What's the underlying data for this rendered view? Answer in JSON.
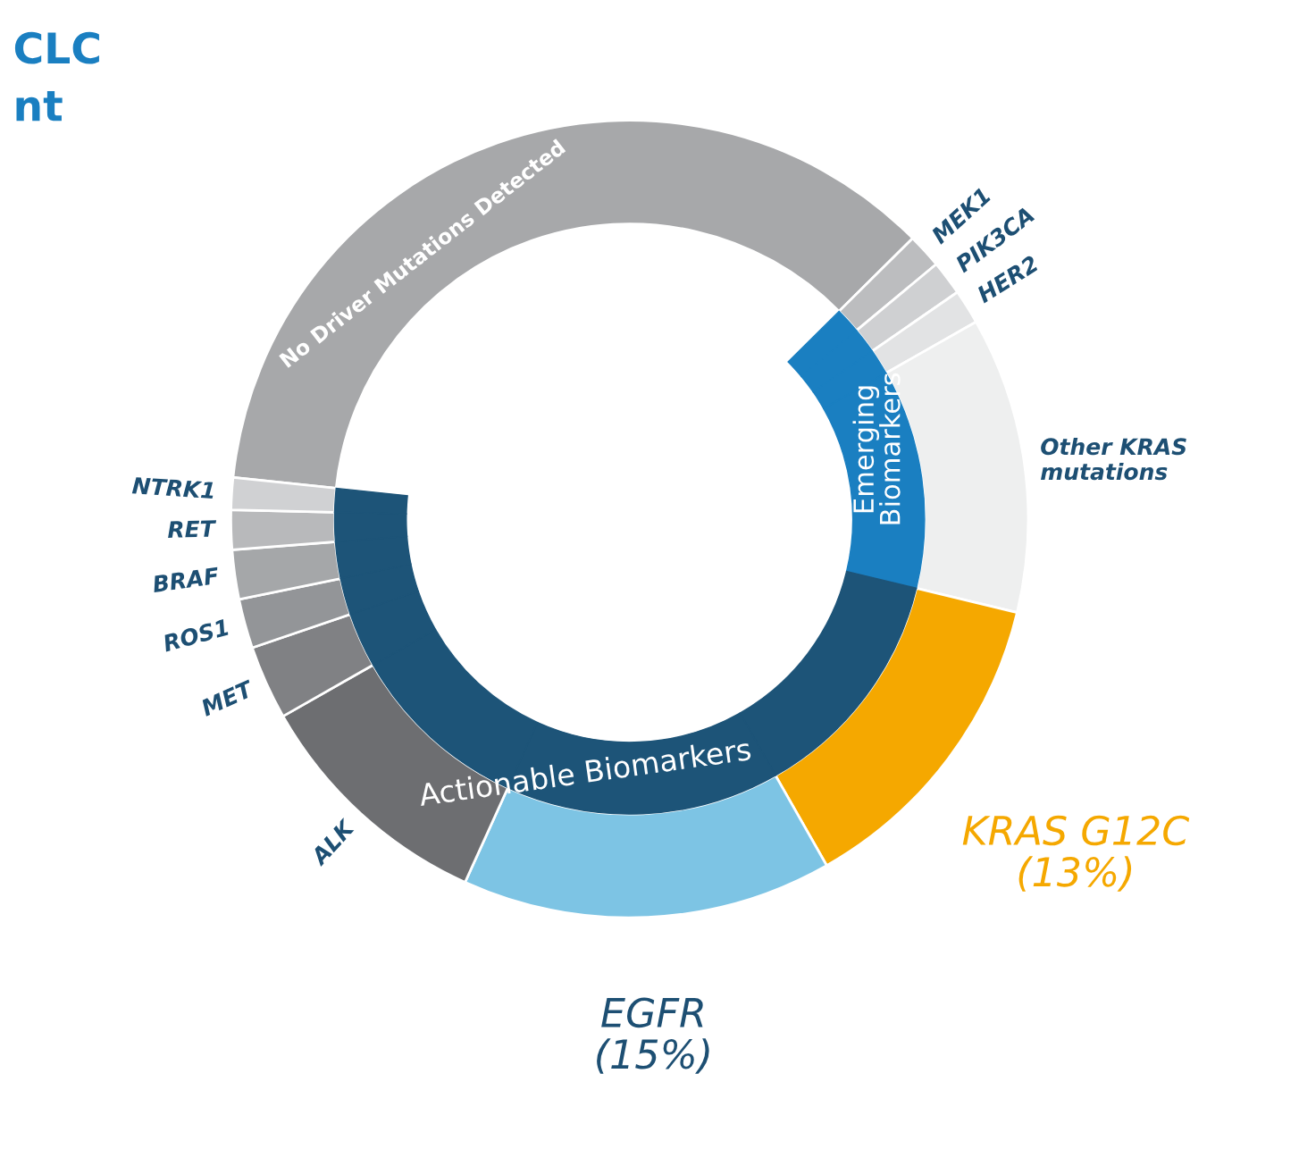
{
  "chart_data": {
    "type": "donut",
    "title": "CLC",
    "subtitle": "nt",
    "categories": [
      "No Driver Mutations Detected",
      "MEK1",
      "PIK3CA",
      "HER2",
      "Other KRAS\nmutations",
      "KRAS G12C",
      "EGFR",
      "ALK",
      "MET",
      "ROS1",
      "BRAF",
      "RET",
      "NTRK1"
    ],
    "values": [
      35.9,
      1.4,
      1.4,
      1.4,
      12,
      13,
      15,
      10,
      3,
      2,
      2,
      1.6,
      1.3
    ],
    "value_labels": [
      null,
      null,
      null,
      null,
      null,
      "(13%)",
      "(15%)",
      null,
      null,
      null,
      null,
      null,
      null
    ],
    "colors": [
      "#a7a8aa",
      "#bcbdbf",
      "#cfd0d2",
      "#e2e3e4",
      "#eeefef",
      "#f5a800",
      "#7dc4e4",
      "#6d6e71",
      "#808184",
      "#939598",
      "#a5a7a9",
      "#b8b9bb",
      "#d0d1d3"
    ],
    "series": [
      {
        "values": [
          null,
          1.4,
          1.4,
          1.4,
          12,
          13,
          15,
          10,
          3,
          2,
          2,
          1.6,
          1.3
        ],
        "colors": [
          "#ffffff",
          "#1a7fc1",
          "#1a7fc1",
          "#1a7fc1",
          "#1a7fc1",
          "#1d5478",
          "#1d5478",
          "#1d5478",
          "#1d5478",
          "#1d5478",
          "#1d5478",
          "#1d5478",
          "#1d5478"
        ]
      }
    ],
    "annotations": [
      "Emerging\nBiomarkers",
      "Actionable Biomarkers"
    ]
  }
}
